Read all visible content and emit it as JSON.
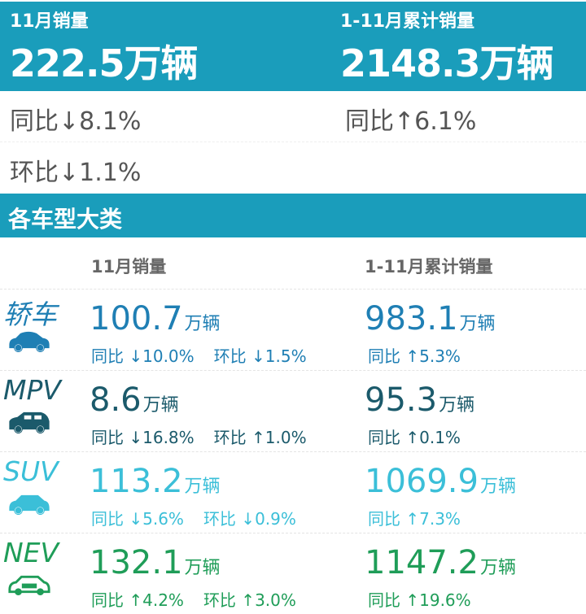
{
  "summary": {
    "month": {
      "label": "11月销量",
      "value": "222.5万辆",
      "yoy": "同比",
      "yoy_dir": "down",
      "yoy_val": "8.1%",
      "mom": "环比",
      "mom_dir": "down",
      "mom_val": "1.1%"
    },
    "ytd": {
      "label": "1-11月累计销量",
      "value": "2148.3万辆",
      "yoy": "同比",
      "yoy_dir": "up",
      "yoy_val": "6.1%"
    }
  },
  "section_title": "各车型大类",
  "columns": {
    "month": "11月销量",
    "ytd": "1-11月累计销量"
  },
  "unit": "万辆",
  "categories": [
    {
      "name": "轿车",
      "icon": "sedan-icon",
      "color": "#1f7fb4",
      "month": "100.7",
      "yoy": "同比",
      "yoy_dir": "down",
      "yoy_val": "10.0%",
      "mom": "环比",
      "mom_dir": "down",
      "mom_val": "1.5%",
      "ytd": "983.1",
      "ytd_yoy": "同比",
      "ytd_dir": "up",
      "ytd_val": "5.3%"
    },
    {
      "name": "MPV",
      "icon": "mpv-icon",
      "color": "#1b5a6b",
      "month": "8.6",
      "yoy": "同比",
      "yoy_dir": "down",
      "yoy_val": "16.8%",
      "mom": "环比",
      "mom_dir": "up",
      "mom_val": "1.0%",
      "ytd": "95.3",
      "ytd_yoy": "同比",
      "ytd_dir": "up",
      "ytd_val": "0.1%"
    },
    {
      "name": "SUV",
      "icon": "suv-icon",
      "color": "#3bbfd8",
      "month": "113.2",
      "yoy": "同比",
      "yoy_dir": "down",
      "yoy_val": "5.6%",
      "mom": "环比",
      "mom_dir": "down",
      "mom_val": "0.9%",
      "ytd": "1069.9",
      "ytd_yoy": "同比",
      "ytd_dir": "up",
      "ytd_val": "7.3%"
    },
    {
      "name": "NEV",
      "icon": "nev-icon",
      "color": "#1f9d58",
      "month": "132.1",
      "yoy": "同比",
      "yoy_dir": "up",
      "yoy_val": "4.2%",
      "mom": "环比",
      "mom_dir": "up",
      "mom_val": "3.0%",
      "ytd": "1147.2",
      "ytd_yoy": "同比",
      "ytd_dir": "up",
      "ytd_val": "19.6%"
    }
  ]
}
